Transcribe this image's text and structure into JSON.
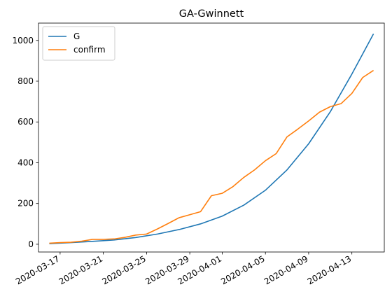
{
  "chart_data": {
    "type": "line",
    "title": "GA-Gwinnett",
    "xlabel": "",
    "ylabel": "",
    "x_type": "date",
    "xlim": [
      "2020-03-15",
      "2020-04-16"
    ],
    "ylim": [
      -38,
      1085
    ],
    "grid": false,
    "legend_position": "top-left",
    "x_ticks": [
      "2020-03-17",
      "2020-03-21",
      "2020-03-25",
      "2020-03-29",
      "2020-04-01",
      "2020-04-05",
      "2020-04-09",
      "2020-04-13"
    ],
    "y_ticks": [
      0,
      200,
      400,
      600,
      800,
      1000
    ],
    "series": [
      {
        "name": "G",
        "color": "#1f77b4",
        "points": [
          [
            "2020-03-16",
            3
          ],
          [
            "2020-03-18",
            8
          ],
          [
            "2020-03-20",
            14
          ],
          [
            "2020-03-22",
            21
          ],
          [
            "2020-03-24",
            33
          ],
          [
            "2020-03-26",
            50
          ],
          [
            "2020-03-28",
            72
          ],
          [
            "2020-03-30",
            100
          ],
          [
            "2020-04-01",
            138
          ],
          [
            "2020-04-03",
            192
          ],
          [
            "2020-04-05",
            265
          ],
          [
            "2020-04-07",
            365
          ],
          [
            "2020-04-09",
            493
          ],
          [
            "2020-04-11",
            650
          ],
          [
            "2020-04-13",
            835
          ],
          [
            "2020-04-15",
            1032
          ]
        ]
      },
      {
        "name": "confirm",
        "color": "#ff7f0e",
        "points": [
          [
            "2020-03-16",
            5
          ],
          [
            "2020-03-17",
            8
          ],
          [
            "2020-03-18",
            10
          ],
          [
            "2020-03-19",
            15
          ],
          [
            "2020-03-20",
            24
          ],
          [
            "2020-03-21",
            24
          ],
          [
            "2020-03-22",
            26
          ],
          [
            "2020-03-23",
            34
          ],
          [
            "2020-03-24",
            45
          ],
          [
            "2020-03-25",
            50
          ],
          [
            "2020-03-26",
            75
          ],
          [
            "2020-03-27",
            102
          ],
          [
            "2020-03-28",
            130
          ],
          [
            "2020-03-29",
            145
          ],
          [
            "2020-03-30",
            160
          ],
          [
            "2020-03-31",
            238
          ],
          [
            "2020-04-01",
            250
          ],
          [
            "2020-04-02",
            283
          ],
          [
            "2020-04-03",
            328
          ],
          [
            "2020-04-04",
            365
          ],
          [
            "2020-04-05",
            410
          ],
          [
            "2020-04-06",
            445
          ],
          [
            "2020-04-07",
            527
          ],
          [
            "2020-04-08",
            565
          ],
          [
            "2020-04-09",
            605
          ],
          [
            "2020-04-10",
            648
          ],
          [
            "2020-04-11",
            675
          ],
          [
            "2020-04-12",
            690
          ],
          [
            "2020-04-13",
            740
          ],
          [
            "2020-04-14",
            818
          ],
          [
            "2020-04-15",
            853
          ]
        ]
      }
    ]
  }
}
